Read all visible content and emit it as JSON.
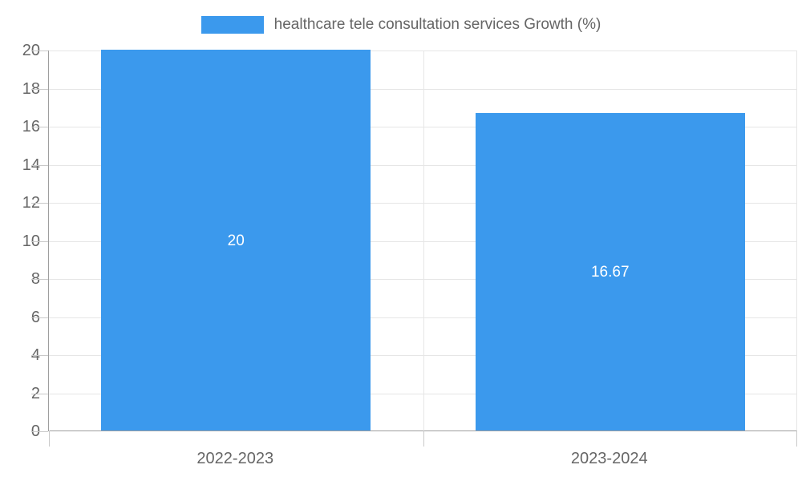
{
  "chart_data": {
    "type": "bar",
    "categories": [
      "2022-2023",
      "2023-2024"
    ],
    "series": [
      {
        "name": "healthcare tele consultation services Growth (%)",
        "values": [
          20,
          16.67
        ],
        "value_labels": [
          "20",
          "16.67"
        ]
      }
    ],
    "title": "",
    "xlabel": "",
    "ylabel": "",
    "ylim": [
      0,
      20
    ],
    "ytick_step": 2,
    "ytick_labels": [
      "0",
      "2",
      "4",
      "6",
      "8",
      "10",
      "12",
      "14",
      "16",
      "18",
      "20"
    ],
    "grid": true,
    "legend_position": "top",
    "bar_width_fraction": 0.72,
    "colors": {
      "bar": "#3b99ed",
      "grid": "#e6e6e6",
      "tick": "#c9c9c9",
      "axis": "#9e9e9e",
      "text": "#666666",
      "data_label": "#ffffff",
      "background": "#ffffff"
    }
  }
}
